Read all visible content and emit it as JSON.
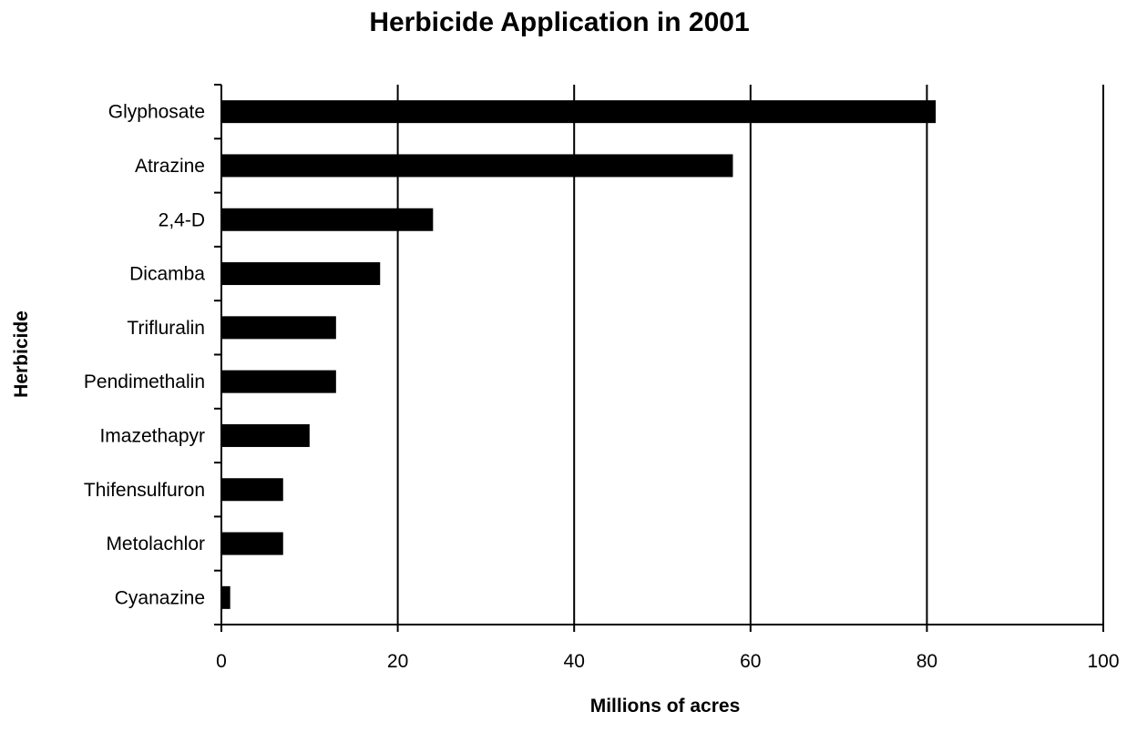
{
  "chart_data": {
    "type": "bar",
    "orientation": "horizontal",
    "title": "Herbicide Application in 2001",
    "xlabel": "Millions of acres",
    "ylabel": "Herbicide",
    "categories": [
      "Glyphosate",
      "Atrazine",
      "2,4-D",
      "Dicamba",
      "Trifluralin",
      "Pendimethalin",
      "Imazethapyr",
      "Thifensulfuron",
      "Metolachlor",
      "Cyanazine"
    ],
    "values": [
      81,
      58,
      24,
      18,
      13,
      13,
      10,
      7,
      7,
      1
    ],
    "xlim": [
      0,
      100
    ],
    "xticks": [
      0,
      20,
      40,
      60,
      80,
      100
    ],
    "grid": "vertical",
    "legend": "none",
    "bar_color": "#000000"
  }
}
